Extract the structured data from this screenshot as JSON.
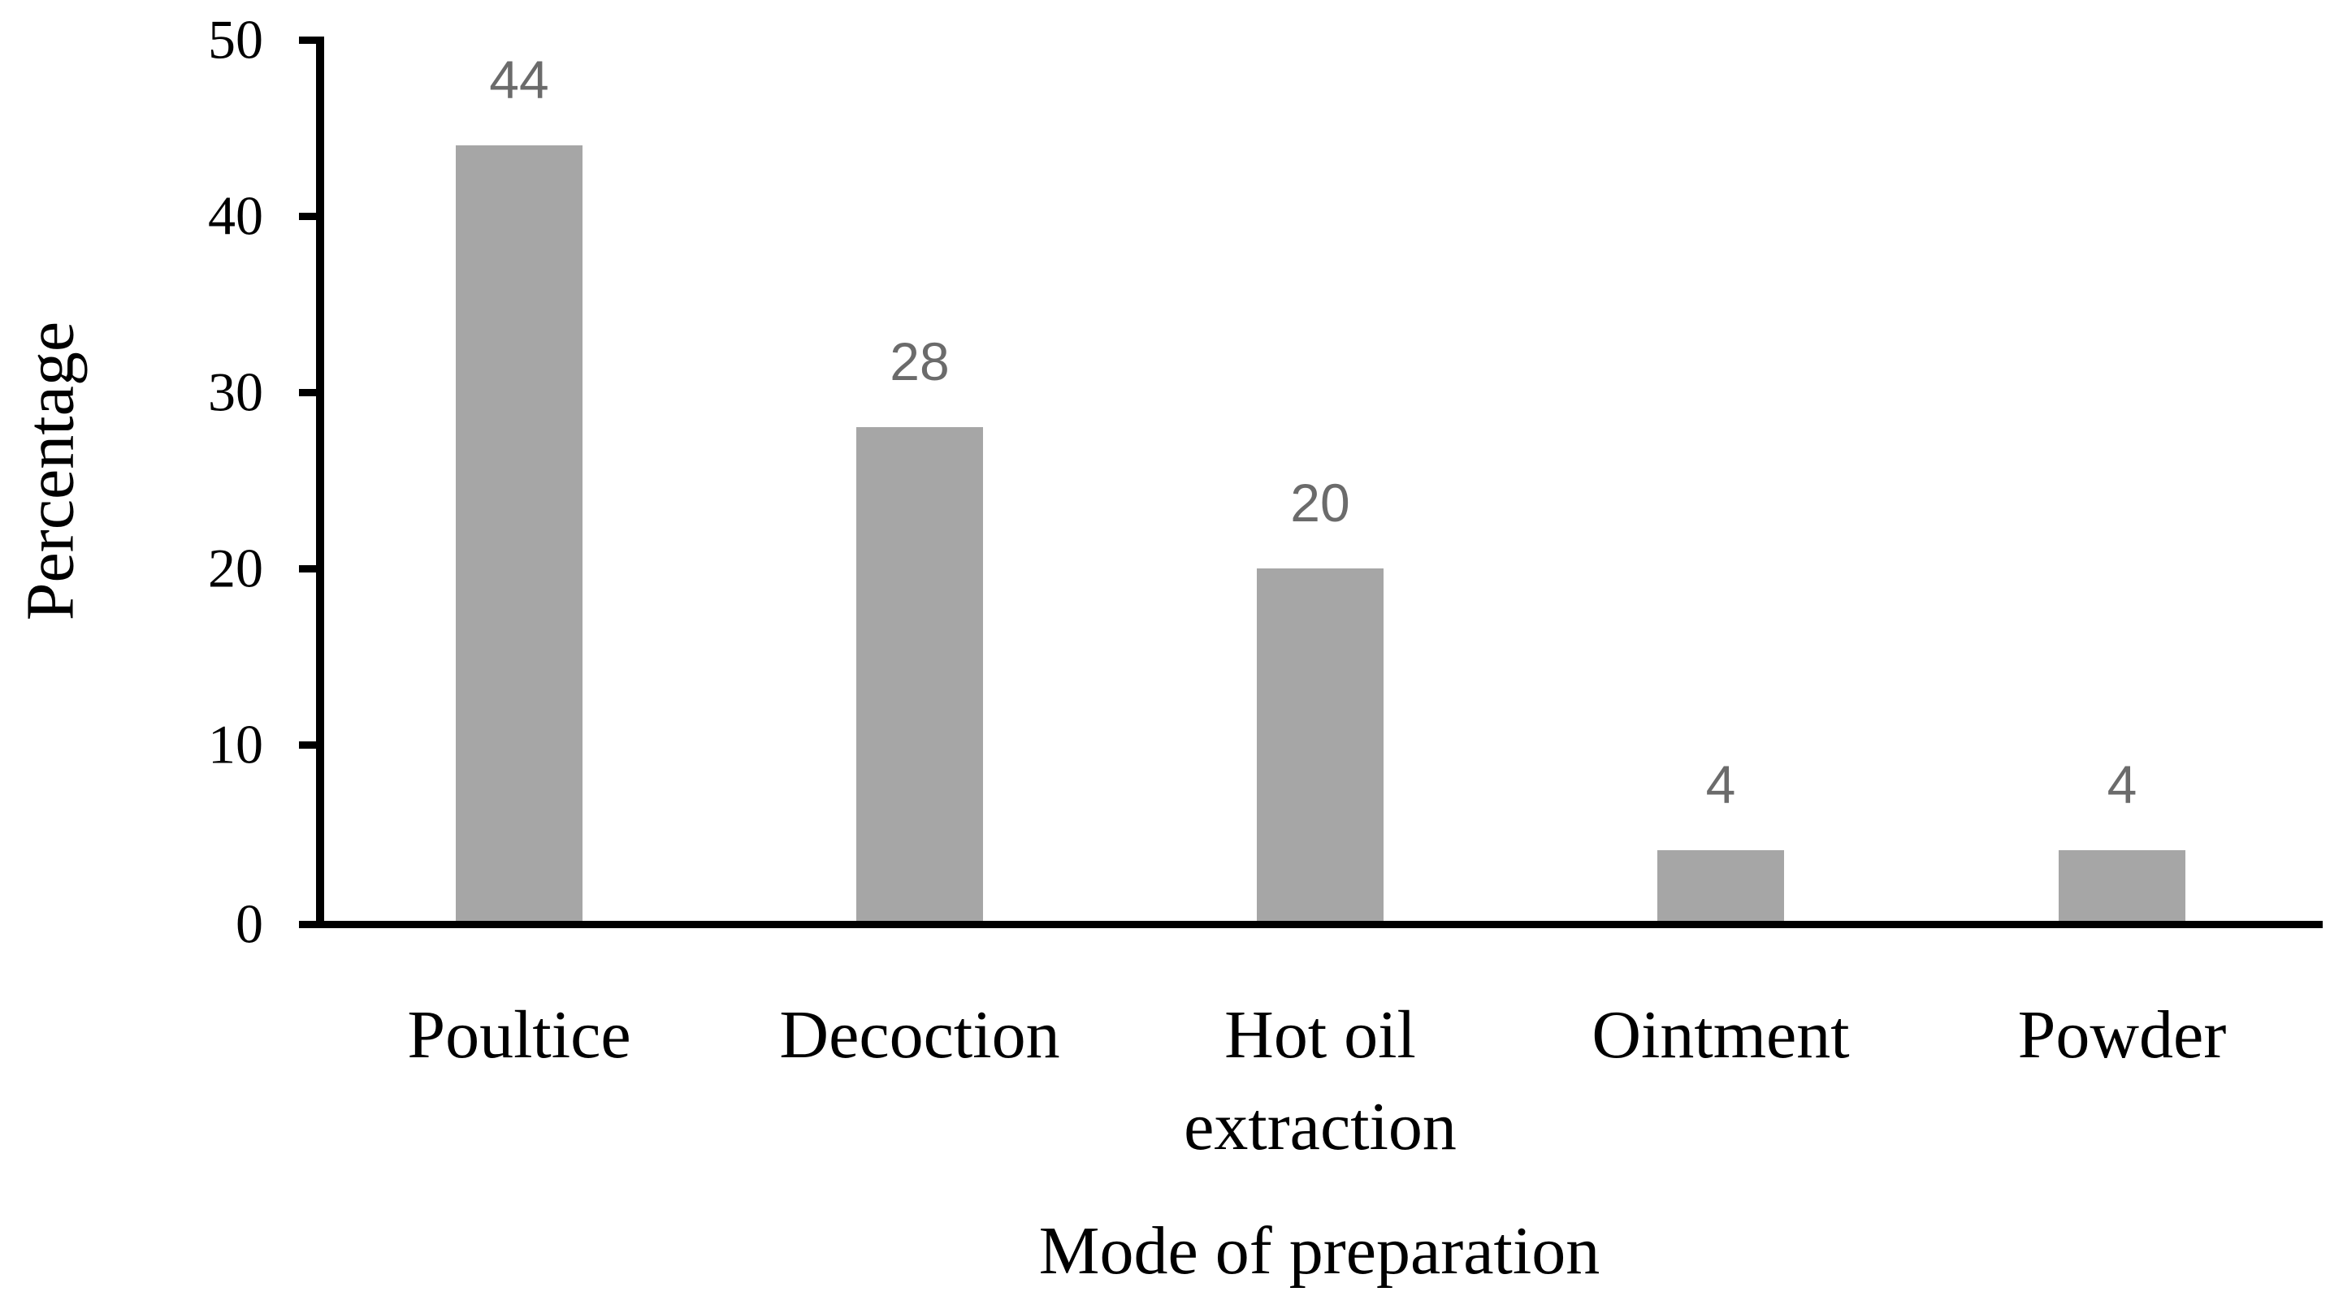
{
  "figure": {
    "background_color": "#ffffff",
    "axis_color": "#000000",
    "bar_color": "#a6a6a6",
    "data_label_color": "#6b6b6b"
  },
  "chart_data": {
    "type": "bar",
    "categories": [
      "Poultice",
      "Decoction",
      "Hot oil\nextraction",
      "Ointment",
      "Powder"
    ],
    "values": [
      44,
      28,
      20,
      4,
      4
    ],
    "xlabel": "Mode of preparation",
    "ylabel": "Percentage",
    "ylim": [
      0,
      50
    ],
    "ytick_interval": 10,
    "ytick_labels": [
      "50",
      "40",
      "30",
      "20",
      "10",
      "0"
    ],
    "grid": false,
    "legend": false,
    "data_labels_shown": true
  }
}
